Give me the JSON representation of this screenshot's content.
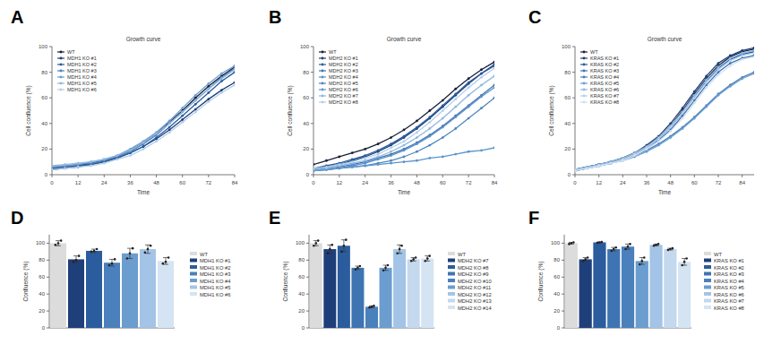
{
  "chart_data": [
    {
      "type": "line",
      "annotation": "A",
      "title": "Growth curve",
      "x_label": "Time",
      "y_label": "Cell confluence (%)",
      "x": [
        0,
        6,
        12,
        18,
        24,
        30,
        36,
        42,
        48,
        54,
        60,
        66,
        72,
        78,
        84
      ],
      "xlim": [
        0,
        84
      ],
      "xticks": [
        0,
        12,
        24,
        36,
        48,
        60,
        72,
        84
      ],
      "ylim": [
        0,
        100
      ],
      "yticks": [
        0,
        20,
        40,
        60,
        80,
        100
      ],
      "grid": false,
      "legend": "top-left",
      "marker": "circle",
      "series": [
        {
          "name": "WT",
          "color": "#1a1f36",
          "values": [
            5,
            6,
            7,
            9,
            11,
            14,
            19,
            25,
            32,
            41,
            50,
            60,
            69,
            77,
            84
          ]
        },
        {
          "name": "MDH1 KO #1",
          "color": "#1f3f7a",
          "values": [
            4,
            5,
            6,
            8,
            10,
            13,
            17,
            22,
            28,
            35,
            43,
            51,
            59,
            66,
            72
          ]
        },
        {
          "name": "MDH1 KO #2",
          "color": "#2b5c9e",
          "values": [
            5,
            6,
            7,
            8,
            10,
            13,
            17,
            22,
            29,
            37,
            46,
            55,
            64,
            73,
            80
          ]
        },
        {
          "name": "MDH1 KO #3",
          "color": "#4a80bb",
          "values": [
            6,
            7,
            8,
            9,
            11,
            14,
            18,
            24,
            31,
            40,
            49,
            58,
            67,
            76,
            83
          ]
        },
        {
          "name": "MDH1 KO #4",
          "color": "#6b9dcf",
          "values": [
            6,
            7,
            8,
            10,
            12,
            15,
            20,
            26,
            33,
            42,
            52,
            62,
            71,
            79,
            85
          ]
        },
        {
          "name": "MDH1 KO #5",
          "color": "#8fb8df",
          "values": [
            7,
            8,
            9,
            10,
            12,
            15,
            19,
            25,
            32,
            40,
            49,
            58,
            67,
            75,
            82
          ]
        },
        {
          "name": "MDH1 KO #6",
          "color": "#b3cfea",
          "values": [
            4,
            5,
            6,
            7,
            9,
            12,
            15,
            20,
            26,
            33,
            41,
            49,
            57,
            64,
            70
          ]
        }
      ]
    },
    {
      "type": "line",
      "annotation": "B",
      "title": "Growth curve",
      "x_label": "Time",
      "y_label": "Cell confluence (%)",
      "x": [
        0,
        6,
        12,
        18,
        24,
        30,
        36,
        42,
        48,
        54,
        60,
        66,
        72,
        78,
        84
      ],
      "xlim": [
        0,
        84
      ],
      "xticks": [
        0,
        12,
        24,
        36,
        48,
        60,
        72,
        84
      ],
      "ylim": [
        0,
        100
      ],
      "yticks": [
        0,
        20,
        40,
        60,
        80,
        100
      ],
      "grid": false,
      "legend": "top-left",
      "marker": "circle",
      "series": [
        {
          "name": "WT",
          "color": "#1a1f36",
          "values": [
            8,
            11,
            14,
            17,
            20,
            24,
            29,
            35,
            42,
            50,
            58,
            67,
            75,
            82,
            88
          ]
        },
        {
          "name": "MDH2 KO #1",
          "color": "#1f3f7a",
          "values": [
            4,
            6,
            8,
            11,
            14,
            18,
            23,
            29,
            36,
            44,
            53,
            62,
            71,
            79,
            86
          ]
        },
        {
          "name": "MDH2 KO #2",
          "color": "#2b5c9e",
          "values": [
            5,
            7,
            9,
            12,
            15,
            19,
            24,
            30,
            37,
            45,
            54,
            63,
            72,
            79,
            85
          ]
        },
        {
          "name": "MDH2 KO #3",
          "color": "#3f74b3",
          "values": [
            4,
            5,
            6,
            8,
            10,
            13,
            16,
            20,
            25,
            31,
            38,
            46,
            54,
            62,
            70
          ]
        },
        {
          "name": "MDH2 KO #4",
          "color": "#5a91c8",
          "values": [
            3,
            4,
            5,
            7,
            9,
            12,
            15,
            19,
            24,
            30,
            37,
            45,
            53,
            61,
            68
          ]
        },
        {
          "name": "MDH2 KO #5",
          "color": "#4f86c0",
          "values": [
            3,
            4,
            5,
            6,
            7,
            9,
            11,
            14,
            18,
            23,
            29,
            36,
            44,
            52,
            60
          ]
        },
        {
          "name": "MDH2 KO #6",
          "color": "#5b95cc",
          "values": [
            3,
            4,
            5,
            6,
            7,
            8,
            9,
            10,
            11,
            13,
            14,
            16,
            18,
            19,
            21
          ]
        },
        {
          "name": "MDH2 KO #7",
          "color": "#8fb8df",
          "values": [
            4,
            5,
            7,
            9,
            11,
            14,
            18,
            23,
            29,
            36,
            44,
            53,
            62,
            70,
            77
          ]
        },
        {
          "name": "MDH2 KO #8",
          "color": "#b3cfea",
          "values": [
            5,
            6,
            8,
            10,
            13,
            16,
            21,
            26,
            33,
            41,
            50,
            59,
            68,
            76,
            83
          ]
        }
      ]
    },
    {
      "type": "line",
      "annotation": "C",
      "title": "Growth curve",
      "x_label": "Time",
      "y_label": "Cell confluence (%)",
      "x": [
        0,
        6,
        12,
        18,
        24,
        30,
        36,
        42,
        48,
        54,
        60,
        66,
        72,
        78,
        84,
        90
      ],
      "xlim": [
        0,
        90
      ],
      "xticks": [
        0,
        12,
        24,
        36,
        48,
        60,
        72,
        84
      ],
      "ylim": [
        0,
        100
      ],
      "yticks": [
        0,
        20,
        40,
        60,
        80,
        100
      ],
      "grid": false,
      "legend": "top-left",
      "marker": "circle",
      "series": [
        {
          "name": "WT",
          "color": "#1a1f36",
          "values": [
            4,
            6,
            8,
            10,
            13,
            17,
            22,
            29,
            38,
            50,
            63,
            75,
            85,
            92,
            96,
            98
          ]
        },
        {
          "name": "KRAS KO #1",
          "color": "#1f3f7a",
          "values": [
            4,
            6,
            8,
            10,
            13,
            17,
            23,
            30,
            40,
            52,
            65,
            77,
            87,
            93,
            97,
            99
          ]
        },
        {
          "name": "KRAS KO #2",
          "color": "#2b5c9e",
          "values": [
            3,
            5,
            7,
            9,
            12,
            16,
            21,
            28,
            37,
            48,
            61,
            73,
            83,
            90,
            94,
            96
          ]
        },
        {
          "name": "KRAS KO #3",
          "color": "#3f74b3",
          "values": [
            3,
            5,
            7,
            9,
            12,
            15,
            20,
            27,
            35,
            46,
            58,
            70,
            80,
            87,
            91,
            93
          ]
        },
        {
          "name": "KRAS KO #4",
          "color": "#4a80bb",
          "values": [
            4,
            6,
            8,
            10,
            12,
            15,
            19,
            24,
            30,
            37,
            45,
            54,
            63,
            70,
            76,
            80
          ]
        },
        {
          "name": "KRAS KO #5",
          "color": "#6b9dcf",
          "values": [
            3,
            5,
            7,
            9,
            11,
            14,
            18,
            23,
            29,
            36,
            44,
            53,
            62,
            69,
            75,
            79
          ]
        },
        {
          "name": "KRAS KO #6",
          "color": "#8fb8df",
          "values": [
            4,
            6,
            8,
            10,
            13,
            17,
            22,
            29,
            38,
            49,
            62,
            74,
            84,
            91,
            95,
            97
          ]
        },
        {
          "name": "KRAS KO #7",
          "color": "#b3cfea",
          "values": [
            4,
            5,
            7,
            9,
            12,
            16,
            21,
            28,
            37,
            48,
            60,
            72,
            82,
            89,
            93,
            95
          ]
        },
        {
          "name": "KRAS KO #8",
          "color": "#cfe0f2",
          "values": [
            3,
            5,
            7,
            9,
            11,
            15,
            20,
            26,
            34,
            44,
            56,
            68,
            78,
            85,
            90,
            92
          ]
        }
      ]
    },
    {
      "type": "bar",
      "annotation": "D",
      "y_label": "Confluence (%)",
      "categories": [
        "WT",
        "MDH1 KO #1",
        "MDH1 KO #2",
        "MDH1 KO #3",
        "MDH1 KO #4",
        "MDH1 KO #5",
        "MDH1 KO #6"
      ],
      "values": [
        100,
        81,
        91,
        77,
        88,
        93,
        79
      ],
      "errors": [
        3,
        4,
        2,
        4,
        6,
        5,
        4
      ],
      "replicates": [
        [
          98,
          100,
          103
        ],
        [
          78,
          80,
          85
        ],
        [
          90,
          91,
          93
        ],
        [
          74,
          76,
          81
        ],
        [
          82,
          88,
          94
        ],
        [
          89,
          93,
          97
        ],
        [
          76,
          78,
          83
        ]
      ],
      "colors": [
        "#dcdcdc",
        "#1f3f7a",
        "#2b5c9e",
        "#4a80bb",
        "#6b9dcf",
        "#a3c4e6",
        "#d4e4f3"
      ],
      "ylim": [
        0,
        110
      ],
      "yticks": [
        0,
        20,
        40,
        60,
        80,
        100
      ],
      "grid": false,
      "legend": "right",
      "tick_labels": "y"
    },
    {
      "type": "bar",
      "annotation": "E",
      "y_label": "Confluence (%)",
      "categories": [
        "WT",
        "MDH2 KO #7",
        "MDH2 KO #8",
        "MDH2 KO #9",
        "MDH2 KO #10",
        "MDH2 KO #11",
        "MDH2 KO #12",
        "MDH2 KO #13",
        "MDH2 KO #14"
      ],
      "values": [
        100,
        93,
        97,
        71,
        25,
        71,
        93,
        81,
        82
      ],
      "errors": [
        3,
        5,
        7,
        2,
        1,
        3,
        5,
        2,
        3
      ],
      "replicates": [
        [
          97,
          100,
          103
        ],
        [
          88,
          93,
          98
        ],
        [
          90,
          97,
          104
        ],
        [
          69,
          71,
          73
        ],
        [
          24,
          25,
          26
        ],
        [
          68,
          71,
          74
        ],
        [
          88,
          93,
          97
        ],
        [
          79,
          81,
          83
        ],
        [
          79,
          82,
          85
        ]
      ],
      "colors": [
        "#dcdcdc",
        "#1f3f7a",
        "#2b5c9e",
        "#3f74b3",
        "#4a80bb",
        "#6b9dcf",
        "#a3c4e6",
        "#c4d8ee",
        "#d4e4f3"
      ],
      "ylim": [
        0,
        110
      ],
      "yticks": [
        0,
        20,
        40,
        60,
        80,
        100
      ],
      "grid": false,
      "legend": "right",
      "tick_labels": "y"
    },
    {
      "type": "bar",
      "annotation": "F",
      "y_label": "Confluence (%)",
      "categories": [
        "WT",
        "KRAS KO #1",
        "KRAS KO #2",
        "KRAS KO #3",
        "KRAS KO #4",
        "KRAS KO #5",
        "KRAS KO #6",
        "KRAS KO #7",
        "KRAS KO #8"
      ],
      "values": [
        100,
        81,
        101,
        93,
        96,
        79,
        98,
        93,
        78
      ],
      "errors": [
        1,
        2,
        0.5,
        2,
        3,
        4,
        1,
        1,
        4
      ],
      "replicates": [
        [
          99,
          100,
          101
        ],
        [
          79,
          81,
          83
        ],
        [
          100.5,
          101,
          101.5
        ],
        [
          91,
          93,
          95
        ],
        [
          93,
          96,
          99
        ],
        [
          75,
          79,
          83
        ],
        [
          97,
          98,
          99
        ],
        [
          92,
          93,
          94
        ],
        [
          74,
          78,
          82
        ]
      ],
      "colors": [
        "#dcdcdc",
        "#1f3f7a",
        "#2b5c9e",
        "#3f74b3",
        "#4a80bb",
        "#6b9dcf",
        "#a3c4e6",
        "#c4d8ee",
        "#d4e4f3"
      ],
      "ylim": [
        0,
        110
      ],
      "yticks": [
        0,
        20,
        40,
        60,
        80,
        100
      ],
      "grid": false,
      "legend": "right",
      "tick_labels": "y"
    }
  ]
}
